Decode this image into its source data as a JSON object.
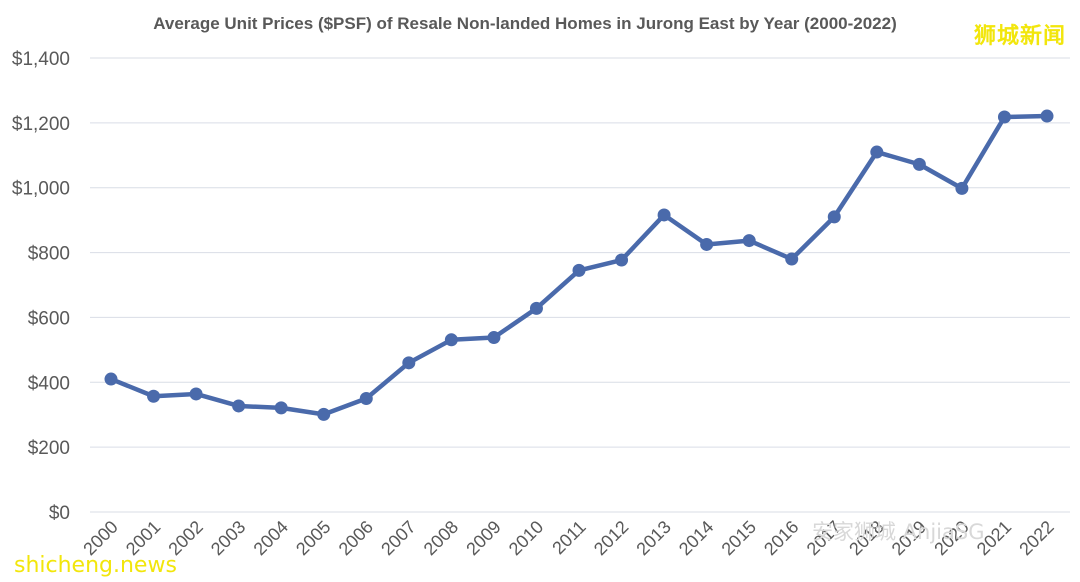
{
  "chart_data": {
    "type": "line",
    "title": "Average Unit Prices ($PSF) of Resale Non-landed Homes in Jurong East by Year (2000-2022)",
    "xlabel": "",
    "ylabel": "",
    "categories": [
      "2000",
      "2001",
      "2002",
      "2003",
      "2004",
      "2005",
      "2006",
      "2007",
      "2008",
      "2009",
      "2010",
      "2011",
      "2012",
      "2013",
      "2014",
      "2015",
      "2016",
      "2017",
      "2018",
      "2019",
      "2020",
      "2021",
      "2022"
    ],
    "series": [
      {
        "values": [
          410,
          357,
          364,
          327,
          321,
          301,
          350,
          460,
          531,
          538,
          628,
          745,
          777,
          916,
          825,
          837,
          780,
          910,
          1110,
          1072,
          998,
          1218,
          1221
        ]
      }
    ],
    "ylim": [
      0,
      1400
    ],
    "yticks": [
      "$0",
      "$200",
      "$400",
      "$600",
      "$800",
      "$1,000",
      "$1,200",
      "$1,400"
    ],
    "ytick_values": [
      0,
      200,
      400,
      600,
      800,
      1000,
      1200,
      1400
    ],
    "grid": true,
    "line_color": "#4a6aab",
    "gridline_color": "#d9dde6"
  },
  "watermarks": {
    "top_right": "狮城新闻",
    "bottom_left": "shicheng.news",
    "center": "安家狮城 AnjiaSG"
  }
}
